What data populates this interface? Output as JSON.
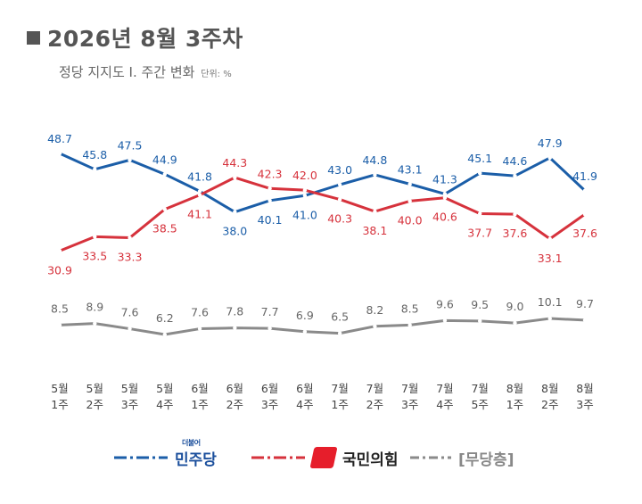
{
  "header": {
    "title": "2026년 8월 3주차",
    "subtitle": "정당 지지도 Ⅰ. 주간 변화",
    "unit": "단위: %"
  },
  "chart_data": {
    "type": "line",
    "title": "2026년 8월 3주차",
    "subtitle": "정당 지지도 Ⅰ. 주간 변화",
    "unit": "단위: %",
    "categories": [
      [
        "5월",
        "1주"
      ],
      [
        "5월",
        "2주"
      ],
      [
        "5월",
        "3주"
      ],
      [
        "5월",
        "4주"
      ],
      [
        "6월",
        "1주"
      ],
      [
        "6월",
        "2주"
      ],
      [
        "6월",
        "3주"
      ],
      [
        "6월",
        "4주"
      ],
      [
        "7월",
        "1주"
      ],
      [
        "7월",
        "2주"
      ],
      [
        "7월",
        "3주"
      ],
      [
        "7월",
        "4주"
      ],
      [
        "7월",
        "5주"
      ],
      [
        "8월",
        "1주"
      ],
      [
        "8월",
        "2주"
      ],
      [
        "8월",
        "3주"
      ]
    ],
    "series": [
      {
        "name": "더불어민주당",
        "color": "#1b5ea8",
        "values": [
          48.7,
          45.8,
          47.5,
          44.9,
          41.8,
          38.0,
          40.1,
          41.0,
          43.0,
          44.8,
          43.1,
          41.3,
          45.1,
          44.6,
          47.9,
          41.9
        ]
      },
      {
        "name": "국민의힘",
        "color": "#d6323c",
        "values": [
          30.9,
          33.5,
          33.3,
          38.5,
          41.1,
          44.3,
          42.3,
          42.0,
          40.3,
          38.1,
          40.0,
          40.6,
          37.7,
          37.6,
          33.1,
          37.6
        ]
      },
      {
        "name": "[무당층]",
        "color": "#8a8a8a",
        "values": [
          8.5,
          8.9,
          7.6,
          6.2,
          7.6,
          7.8,
          7.7,
          6.9,
          6.5,
          8.2,
          8.5,
          9.6,
          9.5,
          9.0,
          10.1,
          9.7
        ]
      }
    ],
    "grid": false,
    "legend_position": "bottom"
  },
  "legend": {
    "dem_small": "더불어",
    "dem_name": "민주당",
    "ppp_name": "국민의힘",
    "ind_name": "[무당층]"
  }
}
